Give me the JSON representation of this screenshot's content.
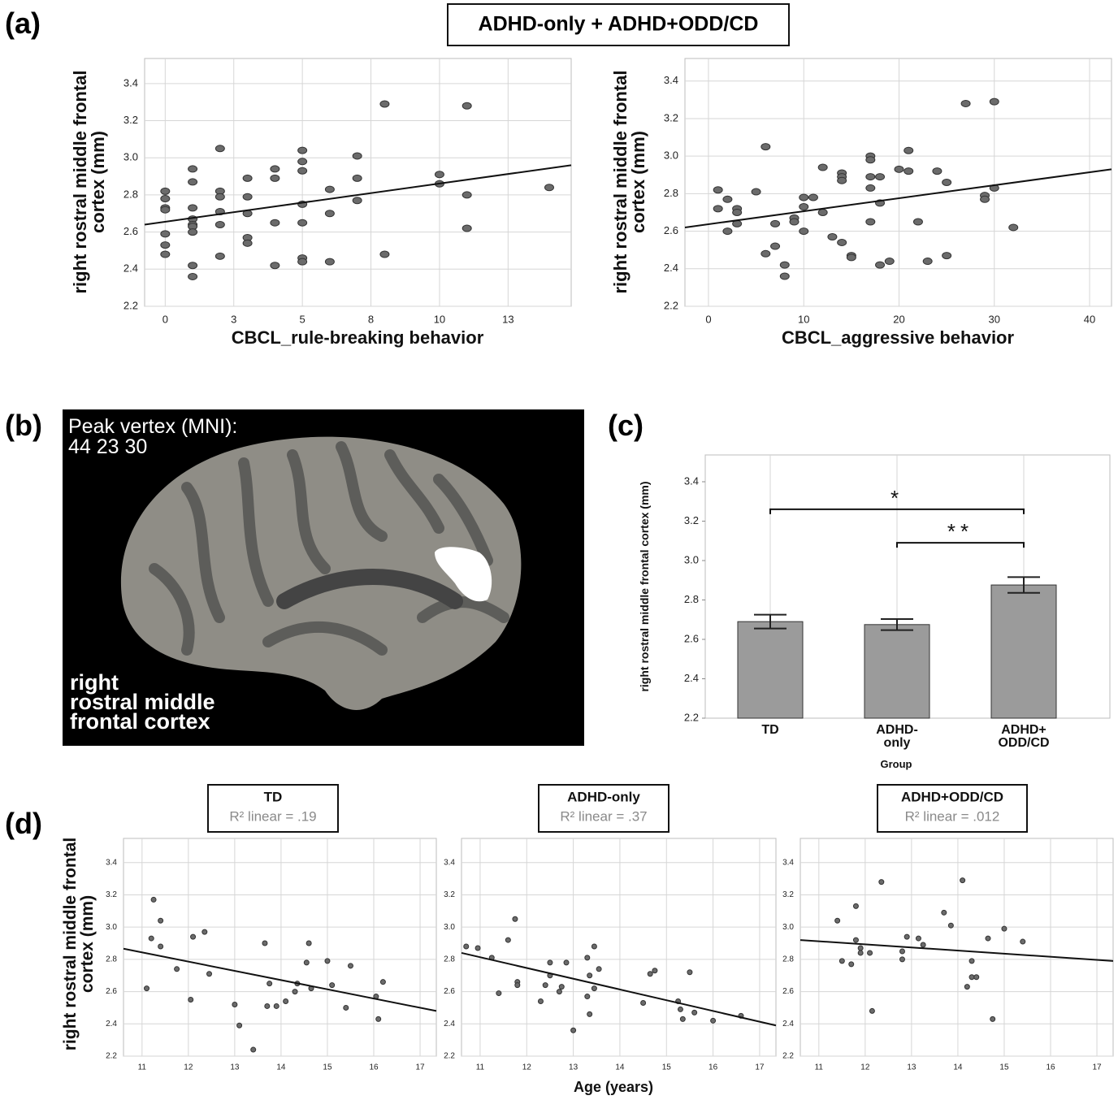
{
  "figure_title": "ADHD-only + ADHD+ODD/CD",
  "panel_labels": [
    "(a)",
    "(b)",
    "(c)",
    "(d)"
  ],
  "brain": {
    "peak_label": "Peak vertex (MNI):",
    "peak_coords": "44 23 30",
    "region_label": "right\nrostral middle\nfrontal cortex"
  },
  "chart_data": [
    {
      "type": "scatter",
      "xlabel": "CBCL_rule-breaking behavior",
      "ylabel": "right rostral middle frontal cortex (mm)",
      "color": "#6b6b6b",
      "xlim": [
        -0.75,
        14.8
      ],
      "ylim": [
        2.2,
        3.535
      ],
      "xticks": [
        0,
        {
          "value": 2.5,
          "label": "3"
        },
        5,
        {
          "value": 7.5,
          "label": "8"
        },
        10,
        {
          "value": 12.5,
          "label": "13"
        }
      ],
      "yticks": [
        2.2,
        2.4,
        2.6,
        2.8,
        {
          "value": 3,
          "label": "3.0"
        },
        3.2,
        3.4
      ],
      "grid": true,
      "x": [
        0,
        0,
        0,
        0,
        0,
        0,
        0,
        1,
        1,
        1,
        1,
        1,
        1,
        1,
        1,
        1,
        2,
        2,
        2,
        2,
        2,
        2,
        3,
        3,
        3,
        3,
        3,
        4,
        4,
        4,
        4,
        5,
        5,
        5,
        5,
        5,
        5,
        5,
        6,
        6,
        6,
        7,
        7,
        7,
        8,
        8,
        10,
        10,
        11,
        11,
        11,
        14
      ],
      "values": [
        2.82,
        2.78,
        2.73,
        2.72,
        2.59,
        2.53,
        2.48,
        2.94,
        2.87,
        2.73,
        2.67,
        2.64,
        2.63,
        2.6,
        2.42,
        2.36,
        3.05,
        2.82,
        2.79,
        2.71,
        2.64,
        2.47,
        2.89,
        2.79,
        2.7,
        2.57,
        2.54,
        2.94,
        2.89,
        2.65,
        2.42,
        3.04,
        2.98,
        2.93,
        2.75,
        2.65,
        2.46,
        2.44,
        2.83,
        2.7,
        2.44,
        3.01,
        2.89,
        2.77,
        3.29,
        2.48,
        2.91,
        2.86,
        3.28,
        2.8,
        2.62,
        2.84
      ],
      "trend_line": {
        "x": [
          -0.75,
          14.8
        ],
        "values": [
          2.64,
          2.96
        ],
        "color": "#111111"
      }
    },
    {
      "type": "scatter",
      "xlabel": "CBCL_aggressive behavior",
      "ylabel": "right rostral middle frontal cortex (mm)",
      "color": "#6b6b6b",
      "xlim": [
        -2.47,
        42.3
      ],
      "ylim": [
        2.2,
        3.52
      ],
      "xticks": [
        0,
        10,
        20,
        30,
        40
      ],
      "yticks": [
        2.2,
        2.4,
        2.6,
        2.8,
        {
          "value": 3,
          "label": "3.0"
        },
        3.2,
        3.4
      ],
      "grid": true,
      "x": [
        1,
        1,
        2,
        2,
        3,
        3,
        3,
        5,
        6,
        6,
        7,
        7,
        8,
        8,
        9,
        9,
        10,
        10,
        10,
        11,
        12,
        12,
        13,
        14,
        14,
        14,
        14,
        15,
        15,
        17,
        17,
        17,
        17,
        17,
        18,
        18,
        18,
        19,
        20,
        21,
        21,
        22,
        23,
        24,
        25,
        25,
        27,
        29,
        29,
        30,
        30,
        32
      ],
      "values": [
        2.82,
        2.72,
        2.77,
        2.6,
        2.72,
        2.7,
        2.64,
        2.81,
        3.05,
        2.48,
        2.64,
        2.52,
        2.42,
        2.36,
        2.67,
        2.65,
        2.78,
        2.73,
        2.6,
        2.78,
        2.94,
        2.7,
        2.57,
        2.91,
        2.89,
        2.87,
        2.54,
        2.47,
        2.46,
        3.0,
        2.98,
        2.89,
        2.83,
        2.65,
        2.89,
        2.75,
        2.42,
        2.44,
        2.93,
        3.03,
        2.92,
        2.65,
        2.44,
        2.92,
        2.86,
        2.47,
        3.28,
        2.79,
        2.77,
        3.29,
        2.83,
        2.62
      ],
      "trend_line": {
        "x": [
          -2.47,
          42.3
        ],
        "values": [
          2.62,
          2.93
        ],
        "color": "#111111"
      }
    },
    {
      "type": "bar",
      "xlabel": "Group",
      "ylabel": "right rostral middle frontal cortex (mm)",
      "color": "#9b9b9b",
      "categories": [
        "TD",
        "ADHD-\nonly",
        "ADHD+\nODD/CD"
      ],
      "values": [
        2.69,
        2.675,
        2.876
      ],
      "errors": [
        0.035,
        0.028,
        0.04
      ],
      "ylim": [
        2.2,
        3.536
      ],
      "yticks": [
        2.2,
        2.4,
        2.6,
        2.8,
        {
          "value": 3,
          "label": "3.0"
        },
        3.2,
        3.4
      ],
      "grid": true,
      "annotations": [
        {
          "text": "*",
          "from": 0,
          "to": 2,
          "y": 3.26
        },
        {
          "text": "**",
          "from": 1,
          "to": 2,
          "y": 3.09
        }
      ]
    },
    {
      "type": "scatter",
      "title": "TD",
      "subtitle": "R² linear = .19",
      "ylabel": "right rostral middle frontal cortex (mm)",
      "color": "#6b6b6b",
      "xlim": [
        10.6,
        17.35
      ],
      "ylim": [
        2.2,
        3.55
      ],
      "xticks": [
        11,
        12,
        13,
        14,
        15,
        16,
        17
      ],
      "yticks": [
        2.2,
        2.4,
        2.6,
        2.8,
        {
          "value": 3,
          "label": "3.0"
        },
        3.2,
        3.4
      ],
      "grid": true,
      "x": [
        11.1,
        11.2,
        11.25,
        11.4,
        11.4,
        11.75,
        12.05,
        12.1,
        12.35,
        12.45,
        13.0,
        13.1,
        13.4,
        13.65,
        13.7,
        13.75,
        13.9,
        14.1,
        14.3,
        14.35,
        14.55,
        14.6,
        14.65,
        15.0,
        15.1,
        15.4,
        15.5,
        16.05,
        16.1,
        16.2
      ],
      "values": [
        2.62,
        2.93,
        3.17,
        3.04,
        2.88,
        2.74,
        2.55,
        2.94,
        2.97,
        2.71,
        2.52,
        2.39,
        2.24,
        2.9,
        2.51,
        2.65,
        2.51,
        2.54,
        2.6,
        2.65,
        2.78,
        2.9,
        2.62,
        2.79,
        2.64,
        2.5,
        2.76,
        2.57,
        2.43,
        2.66
      ],
      "trend_line": {
        "x": [
          10.6,
          17.35
        ],
        "values": [
          2.866,
          2.48
        ],
        "color": "#111111"
      }
    },
    {
      "type": "scatter",
      "title": "ADHD-only",
      "subtitle": "R² linear = .37",
      "xlabel": "Age (years)",
      "color": "#6b6b6b",
      "xlim": [
        10.6,
        17.35
      ],
      "ylim": [
        2.2,
        3.55
      ],
      "xticks": [
        11,
        12,
        13,
        14,
        15,
        16,
        17
      ],
      "yticks": [
        2.2,
        2.4,
        2.6,
        2.8,
        {
          "value": 3,
          "label": "3.0"
        },
        3.2,
        3.4
      ],
      "grid": true,
      "x": [
        10.7,
        10.95,
        11.25,
        11.4,
        11.6,
        11.75,
        11.8,
        11.8,
        12.3,
        12.4,
        12.5,
        12.5,
        12.7,
        12.75,
        12.85,
        13.0,
        13.3,
        13.3,
        13.35,
        13.35,
        13.45,
        13.45,
        13.55,
        14.5,
        14.65,
        14.75,
        15.25,
        15.3,
        15.35,
        15.5,
        15.6,
        16.0,
        16.6
      ],
      "values": [
        2.88,
        2.87,
        2.81,
        2.59,
        2.92,
        3.05,
        2.66,
        2.64,
        2.54,
        2.64,
        2.78,
        2.7,
        2.6,
        2.63,
        2.78,
        2.36,
        2.81,
        2.57,
        2.46,
        2.7,
        2.88,
        2.62,
        2.74,
        2.53,
        2.71,
        2.73,
        2.54,
        2.49,
        2.43,
        2.72,
        2.47,
        2.42,
        2.45
      ],
      "trend_line": {
        "x": [
          10.6,
          17.35
        ],
        "values": [
          2.84,
          2.39
        ],
        "color": "#111111"
      }
    },
    {
      "type": "scatter",
      "title": "ADHD+ODD/CD",
      "subtitle": "R² linear = .012",
      "color": "#6b6b6b",
      "xlim": [
        10.6,
        17.35
      ],
      "ylim": [
        2.2,
        3.55
      ],
      "xticks": [
        11,
        12,
        13,
        14,
        15,
        16,
        17
      ],
      "yticks": [
        2.2,
        2.4,
        2.6,
        2.8,
        {
          "value": 3,
          "label": "3.0"
        },
        3.2,
        3.4
      ],
      "grid": true,
      "x": [
        11.4,
        11.5,
        11.7,
        11.8,
        11.8,
        11.9,
        11.9,
        12.1,
        12.15,
        12.35,
        12.8,
        12.8,
        12.9,
        13.15,
        13.25,
        13.7,
        13.85,
        14.1,
        14.2,
        14.3,
        14.3,
        14.4,
        14.65,
        14.75,
        15.0,
        15.4
      ],
      "values": [
        3.04,
        2.79,
        2.77,
        3.13,
        2.92,
        2.87,
        2.84,
        2.84,
        2.48,
        3.28,
        2.8,
        2.85,
        2.94,
        2.93,
        2.89,
        3.09,
        3.01,
        3.29,
        2.63,
        2.79,
        2.69,
        2.69,
        2.93,
        2.43,
        2.99,
        2.91
      ],
      "trend_line": {
        "x": [
          10.6,
          17.35
        ],
        "values": [
          2.92,
          2.79
        ],
        "color": "#111111"
      }
    }
  ]
}
